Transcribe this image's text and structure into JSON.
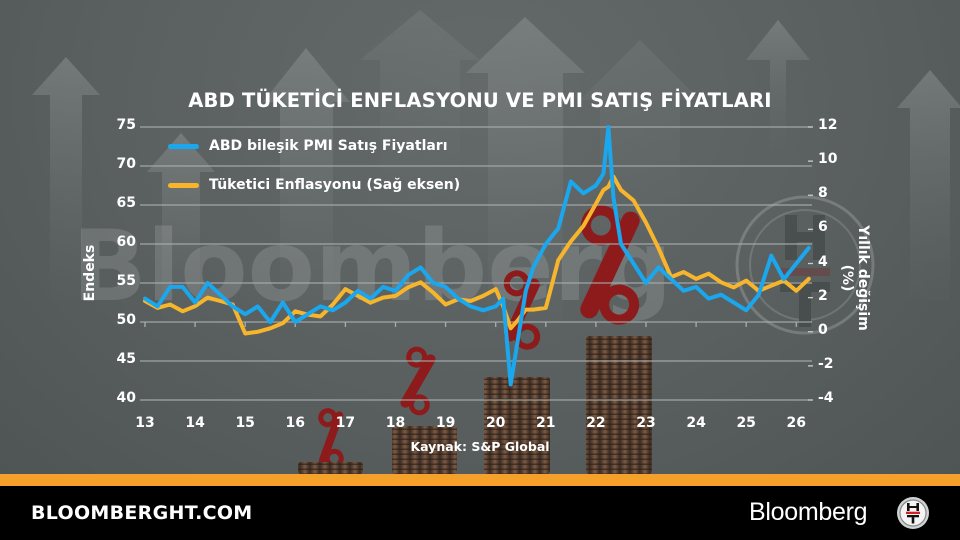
{
  "title": "ABD TÜKETİCİ ENFLASYONU VE PMI SATIŞ FİYATLARI",
  "legend": [
    {
      "label": "ABD bileşik PMI Satış Fiyatları",
      "color": "#1aa7ee"
    },
    {
      "label": "Tüketici Enflasyonu (Sağ eksen)",
      "color": "#f7b52c"
    }
  ],
  "axes": {
    "left_label": "Endeks",
    "right_label": "Yıllık değişim (%)",
    "left_ticks": [
      "75",
      "70",
      "65",
      "60",
      "55",
      "50",
      "45",
      "40"
    ],
    "right_ticks": [
      "12",
      "10",
      "8",
      "6",
      "4",
      "2",
      "0",
      "-2",
      "-4"
    ],
    "x_ticks": [
      "13",
      "14",
      "15",
      "16",
      "17",
      "18",
      "19",
      "20",
      "21",
      "22",
      "23",
      "24",
      "25",
      "26"
    ]
  },
  "source": "Kaynak: S&P Global",
  "footer": {
    "url": "BLOOMBERGHT.COM",
    "brand": "Bloomberg",
    "logo_text": "HT"
  },
  "colors": {
    "background": "#5b6161",
    "accent_bar": "#f4a02a",
    "footer_bg": "#000000",
    "pmi_line": "#1aa7ee",
    "cpi_line": "#f7b52c",
    "gridline": "#a9adad"
  },
  "chart_data": {
    "type": "line",
    "title": "ABD TÜKETİCİ ENFLASYONU VE PMI SATIŞ FİYATLARI",
    "xlabel": "",
    "ylabel": "Endeks",
    "y2label": "Yıllık değişim (%)",
    "ylim": [
      40,
      75
    ],
    "y2lim": [
      -4,
      12
    ],
    "xlim": [
      2013,
      2026.3
    ],
    "grid": true,
    "legend_position": "top-left",
    "source": "Kaynak: S&P Global",
    "x": [
      2013.0,
      2013.25,
      2013.5,
      2013.75,
      2014.0,
      2014.25,
      2014.5,
      2014.75,
      2015.0,
      2015.25,
      2015.5,
      2015.75,
      2016.0,
      2016.25,
      2016.5,
      2016.75,
      2017.0,
      2017.25,
      2017.5,
      2017.75,
      2018.0,
      2018.25,
      2018.5,
      2018.75,
      2019.0,
      2019.25,
      2019.5,
      2019.75,
      2020.0,
      2020.15,
      2020.3,
      2020.45,
      2020.6,
      2020.75,
      2021.0,
      2021.25,
      2021.5,
      2021.75,
      2022.0,
      2022.15,
      2022.25,
      2022.35,
      2022.5,
      2022.75,
      2023.0,
      2023.25,
      2023.5,
      2023.75,
      2024.0,
      2024.25,
      2024.5,
      2024.75,
      2025.0,
      2025.25,
      2025.5,
      2025.75,
      2026.0,
      2026.25
    ],
    "series": [
      {
        "name": "ABD bileşik PMI Satış Fiyatları",
        "axis": "left",
        "values": [
          53.0,
          52.0,
          54.5,
          54.5,
          52.5,
          55.0,
          53.5,
          52.0,
          51.0,
          52.0,
          50.0,
          52.5,
          50.0,
          51.0,
          52.0,
          51.5,
          52.5,
          54.0,
          53.0,
          54.5,
          54.0,
          56.0,
          57.0,
          55.0,
          54.5,
          53.0,
          52.0,
          51.5,
          52.0,
          53.0,
          42.0,
          48.0,
          54.0,
          57.0,
          60.0,
          62.0,
          68.0,
          66.5,
          67.5,
          69.0,
          75.0,
          66.0,
          60.0,
          57.5,
          55.0,
          57.0,
          55.5,
          54.0,
          54.5,
          53.0,
          53.5,
          52.5,
          51.5,
          53.5,
          58.5,
          55.5,
          57.5,
          59.5
        ]
      },
      {
        "name": "Tüketici Enflasyonu (Sağ eksen)",
        "axis": "right",
        "values": [
          1.8,
          1.4,
          1.6,
          1.2,
          1.5,
          2.0,
          1.8,
          1.6,
          -0.1,
          0.0,
          0.2,
          0.5,
          1.2,
          1.0,
          0.9,
          1.6,
          2.5,
          2.1,
          1.7,
          2.0,
          2.1,
          2.6,
          2.9,
          2.3,
          1.6,
          1.9,
          1.8,
          2.1,
          2.5,
          1.5,
          0.2,
          0.7,
          1.3,
          1.3,
          1.4,
          4.2,
          5.3,
          6.2,
          7.5,
          8.3,
          8.5,
          9.1,
          8.3,
          7.7,
          6.4,
          4.9,
          3.2,
          3.5,
          3.1,
          3.4,
          2.9,
          2.6,
          3.0,
          2.4,
          2.7,
          3.0,
          2.4,
          3.1
        ]
      }
    ]
  }
}
